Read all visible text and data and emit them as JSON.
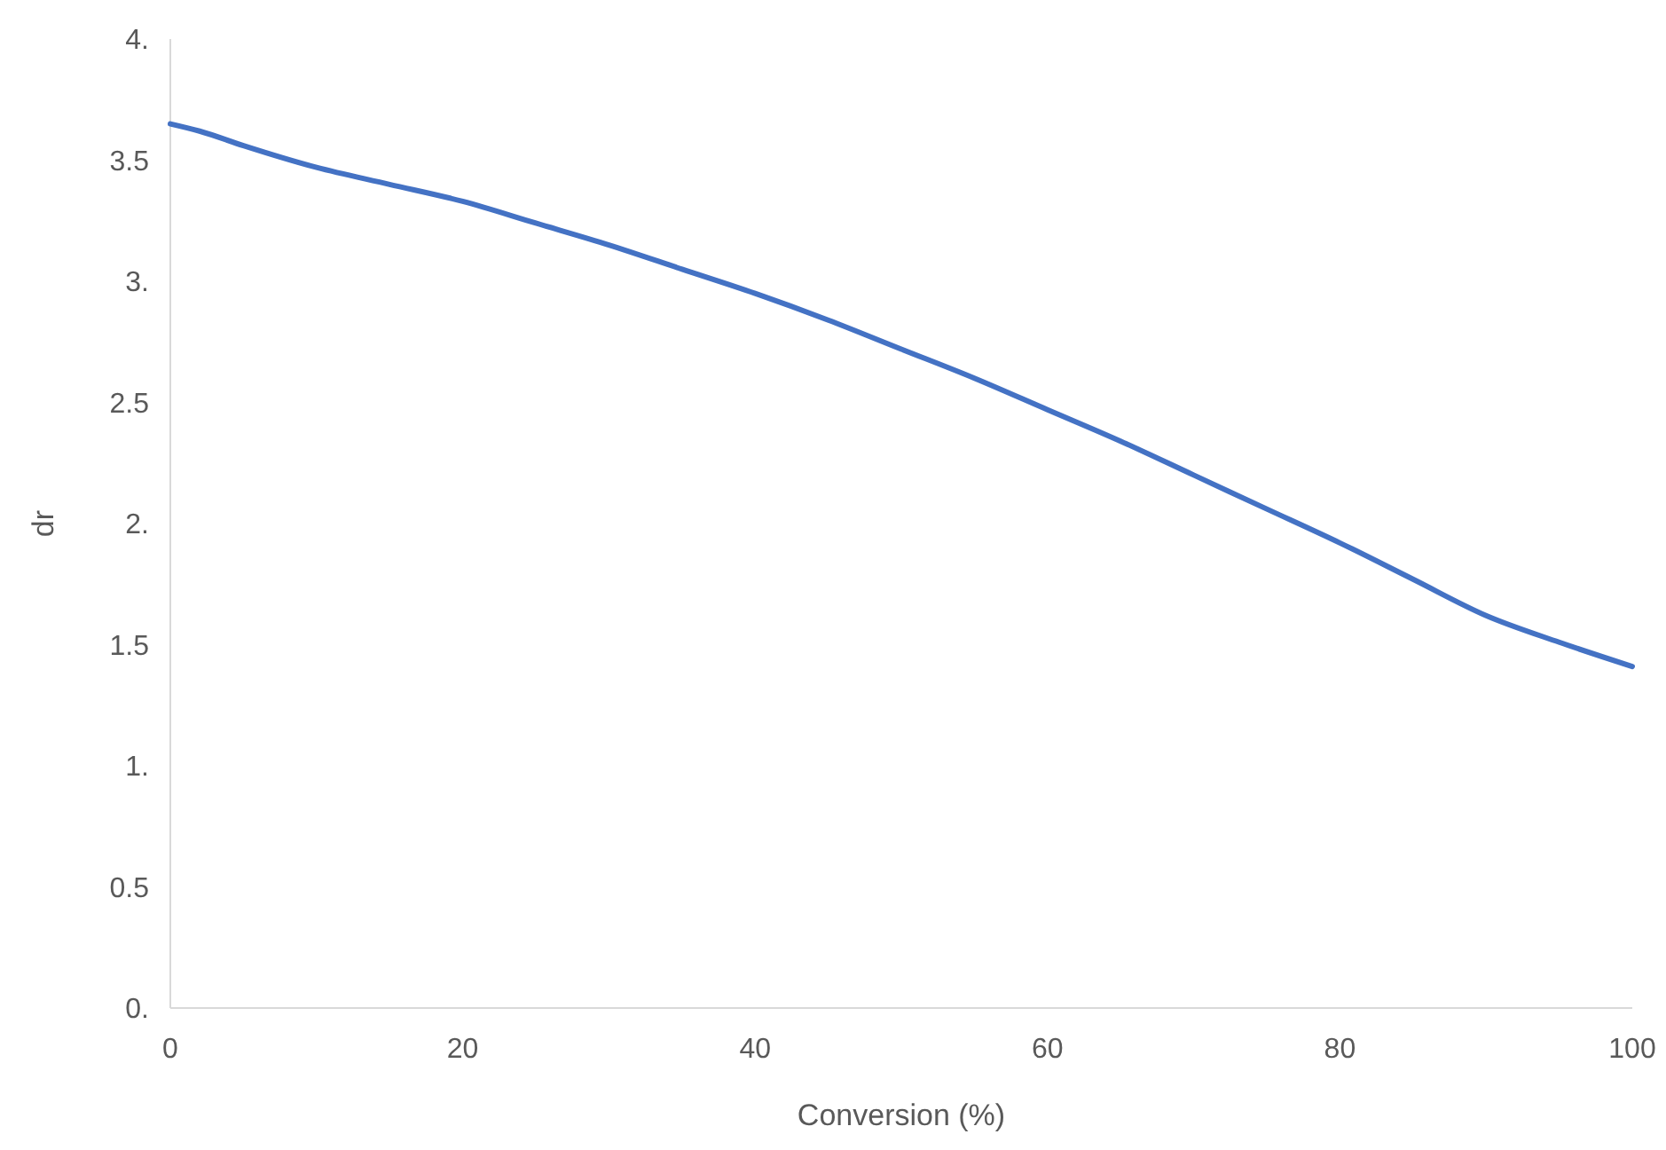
{
  "chart_data": {
    "type": "line",
    "xlabel": "Conversion (%)",
    "ylabel": "dr",
    "x": [
      0,
      2,
      5,
      10,
      15,
      20,
      25,
      30,
      35,
      40,
      45,
      50,
      55,
      60,
      65,
      70,
      75,
      80,
      85,
      90,
      95,
      100
    ],
    "series": [
      {
        "color": "#4472c4",
        "values": [
          3.65,
          3.62,
          3.56,
          3.47,
          3.4,
          3.33,
          3.24,
          3.15,
          3.05,
          2.95,
          2.84,
          2.72,
          2.6,
          2.47,
          2.34,
          2.2,
          2.06,
          1.92,
          1.77,
          1.62,
          1.51,
          1.41
        ]
      }
    ],
    "xlim": [
      0,
      100
    ],
    "xticks": [
      0,
      20,
      40,
      60,
      80,
      100
    ],
    "ylim": [
      0,
      4
    ],
    "yticks": [
      {
        "value": 0,
        "label": "0."
      },
      0.5,
      {
        "value": 1,
        "label": "1."
      },
      1.5,
      {
        "value": 2,
        "label": "2."
      },
      2.5,
      {
        "value": 3,
        "label": "3."
      },
      3.5,
      {
        "value": 4,
        "label": "4."
      }
    ],
    "grid": false,
    "marker": "none",
    "line_style": "solid"
  }
}
